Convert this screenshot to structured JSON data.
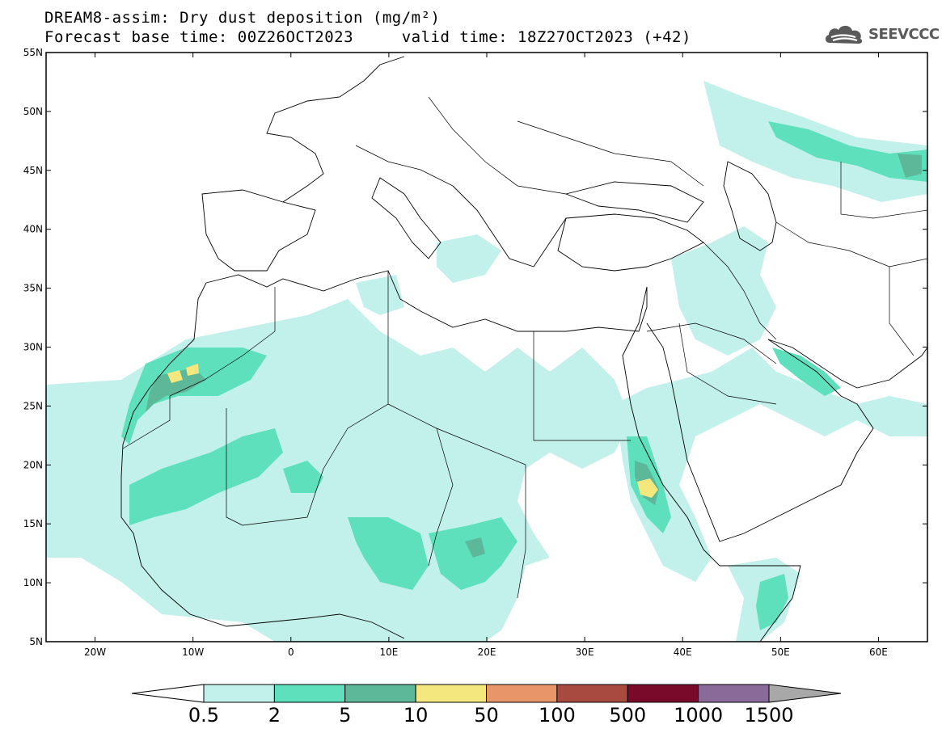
{
  "header": {
    "title_line1": "DREAM8-assim: Dry dust deposition (mg/m²)",
    "title_line2": "Forecast base time: 00Z26OCT2023     valid time: 18Z27OCT2023 (+42)"
  },
  "logo": {
    "text": "SEEVCCC",
    "icon": "cloud-logo-icon"
  },
  "map": {
    "lon_range": [
      -25,
      65
    ],
    "lat_range": [
      5,
      55
    ],
    "lat_labels": [
      "55N",
      "50N",
      "45N",
      "40N",
      "35N",
      "30N",
      "25N",
      "20N",
      "15N",
      "10N",
      "5N"
    ],
    "lon_labels": [
      "20W",
      "10W",
      "0",
      "10E",
      "20E",
      "30E",
      "40E",
      "50E",
      "60E"
    ]
  },
  "legend": {
    "labels": [
      "0.5",
      "2",
      "5",
      "10",
      "50",
      "100",
      "500",
      "1000",
      "1500"
    ],
    "colors": [
      "#ffffff",
      "#c2f0ea",
      "#5ee0bc",
      "#5db89a",
      "#f4e77d",
      "#e8956a",
      "#a84a40",
      "#7a0a2a",
      "#8a6a98",
      "#a8a8a8"
    ]
  }
}
